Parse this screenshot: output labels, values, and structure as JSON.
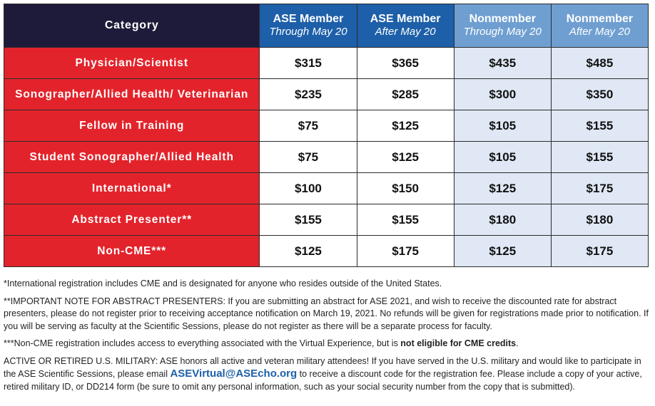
{
  "table": {
    "headers": {
      "category": "Category",
      "col1_title": "ASE Member",
      "col1_sub": "Through May 20",
      "col2_title": "ASE Member",
      "col2_sub": "After May 20",
      "col3_title": "Nonmember",
      "col3_sub": "Through May 20",
      "col4_title": "Nonmember",
      "col4_sub": "After May 20"
    },
    "rows": [
      {
        "label": "Physician/Scientist",
        "values": [
          "$315",
          "$365",
          "$435",
          "$485"
        ]
      },
      {
        "label": "Sonographer/Allied Health/ Veterinarian",
        "values": [
          "$235",
          "$285",
          "$300",
          "$350"
        ]
      },
      {
        "label": "Fellow in Training",
        "values": [
          "$75",
          "$125",
          "$105",
          "$155"
        ]
      },
      {
        "label": "Student Sonographer/Allied Health",
        "values": [
          "$75",
          "$125",
          "$105",
          "$155"
        ]
      },
      {
        "label": "International*",
        "values": [
          "$100",
          "$150",
          "$125",
          "$175"
        ]
      },
      {
        "label": "Abstract Presenter**",
        "values": [
          "$155",
          "$155",
          "$180",
          "$180"
        ]
      },
      {
        "label": "Non-CME***",
        "values": [
          "$125",
          "$175",
          "$125",
          "$175"
        ]
      }
    ]
  },
  "notes": {
    "international": "*International registration includes CME and is designated for anyone who resides outside of the United States.",
    "abstract": "**IMPORTANT NOTE FOR ABSTRACT PRESENTERS: If you are submitting an abstract for ASE 2021, and wish to receive the discounted rate for abstract presenters, please do not register prior to receiving acceptance notification on March 19, 2021. No refunds will be given for registrations made prior to notification. If you will be serving as faculty at the Scientific Sessions, please do not register as there will be a separate process for faculty.",
    "noncme_pre": "***Non-CME registration includes access to everything associated with the Virtual Experience, but is ",
    "noncme_bold": "not eligible for CME credits",
    "noncme_post": ".",
    "military_pre": "ACTIVE OR RETIRED U.S. MILITARY: ASE honors all active and veteran military attendees! If you have served in the U.S. military and would like to participate in the ASE Scientific Sessions, please email ",
    "military_email": "ASEVirtual@ASEcho.org",
    "military_post": " to receive a discount code for the registration fee. Please include a copy of your active, retired military ID, or DD214 form (be sure to omit any personal information, such as your social security number from the copy that is submitted)."
  },
  "colors": {
    "header_dark": "#1e1b3a",
    "member_blue": "#1d5fa8",
    "nonmember_blue": "#6f9fd1",
    "category_red": "#e3232b",
    "nonmember_cell": "#dfe8f4"
  }
}
